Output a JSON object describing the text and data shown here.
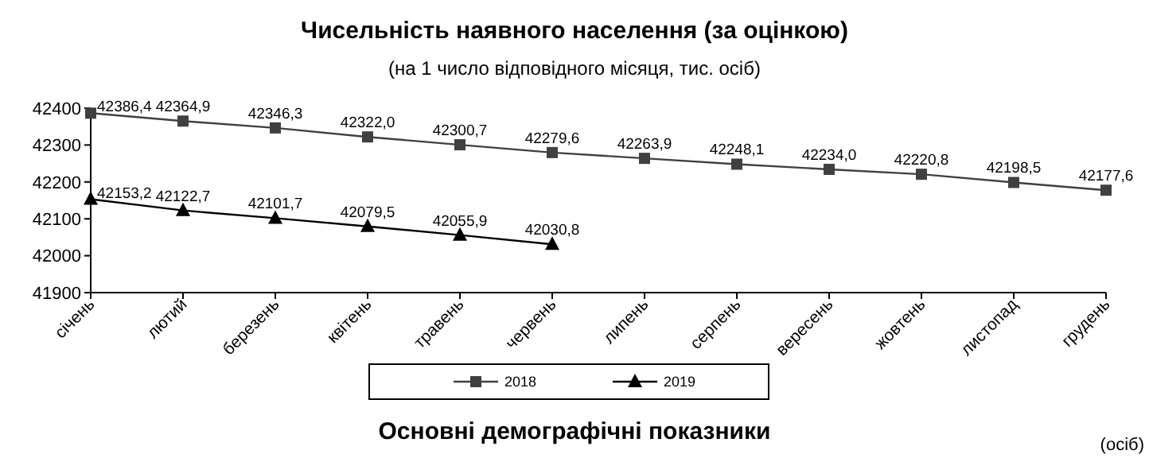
{
  "chart_data": {
    "type": "line",
    "title": "Чисельність наявного населення (за оцінкою)",
    "subtitle": "(на 1 число відповідного місяця, тис. осіб)",
    "categories": [
      "січень",
      "лютий",
      "березень",
      "квітень",
      "травень",
      "червень",
      "липень",
      "серпень",
      "вересень",
      "жовтень",
      "листопад",
      "грудень"
    ],
    "series": [
      {
        "name": "2018",
        "color": "#404040",
        "marker": "square",
        "values": [
          42386.4,
          42364.9,
          42346.3,
          42322.0,
          42300.7,
          42279.6,
          42263.9,
          42248.1,
          42234.0,
          42220.8,
          42198.5,
          42177.6
        ],
        "value_labels": [
          "42386,4",
          "42364,9",
          "42346,3",
          "42322,0",
          "42300,7",
          "42279,6",
          "42263,9",
          "42248,1",
          "42234,0",
          "42220,8",
          "42198,5",
          "42177,6"
        ]
      },
      {
        "name": "2019",
        "color": "#000000",
        "marker": "triangle",
        "values": [
          42153.2,
          42122.7,
          42101.7,
          42079.5,
          42055.9,
          42030.8,
          null,
          null,
          null,
          null,
          null,
          null
        ],
        "value_labels": [
          "42153,2",
          "42122,7",
          "42101,7",
          "42079,5",
          "42055,9",
          "42030,8",
          null,
          null,
          null,
          null,
          null,
          null
        ]
      }
    ],
    "ylim": [
      41900,
      42400
    ],
    "yticks": [
      41900,
      42000,
      42100,
      42200,
      42300,
      42400
    ],
    "grid": false,
    "legend": "bottom",
    "annotations": [
      "Основні демографічні показники",
      "(осіб)"
    ]
  }
}
